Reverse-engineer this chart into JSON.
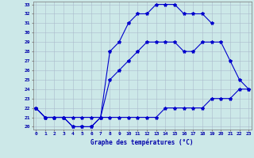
{
  "xlabel": "Graphe des températures (°C)",
  "hours_max": [
    0,
    1,
    2,
    3,
    4,
    5,
    6,
    7,
    8,
    9,
    10,
    11,
    12,
    13,
    14,
    15,
    16,
    17,
    18,
    19
  ],
  "curve_max": [
    22,
    21,
    21,
    21,
    20,
    20,
    20,
    21,
    28,
    29,
    31,
    32,
    32,
    33,
    33,
    33,
    32,
    32,
    32,
    31
  ],
  "hours_all": [
    0,
    1,
    2,
    3,
    4,
    5,
    6,
    7,
    8,
    9,
    10,
    11,
    12,
    13,
    14,
    15,
    16,
    17,
    18,
    19,
    20,
    21,
    22,
    23
  ],
  "curve_mid": [
    22,
    21,
    21,
    21,
    20,
    20,
    20,
    21,
    25,
    26,
    27,
    28,
    29,
    29,
    29,
    29,
    28,
    28,
    29,
    29,
    29,
    27,
    25,
    24
  ],
  "curve_min": [
    22,
    21,
    21,
    21,
    21,
    21,
    21,
    21,
    21,
    21,
    21,
    21,
    21,
    21,
    22,
    22,
    22,
    22,
    22,
    23,
    23,
    23,
    24,
    24
  ],
  "ylim_min": 20,
  "ylim_max": 33,
  "xlim_min": 0,
  "xlim_max": 23,
  "line_color": "#0000cc",
  "bg_color": "#cce8e8",
  "grid_color": "#aabbcc",
  "label_color": "#0000aa",
  "xlabel_fontsize": 5.5,
  "tick_fontsize": 4.5,
  "marker": "*",
  "markersize": 3,
  "linewidth": 0.8
}
